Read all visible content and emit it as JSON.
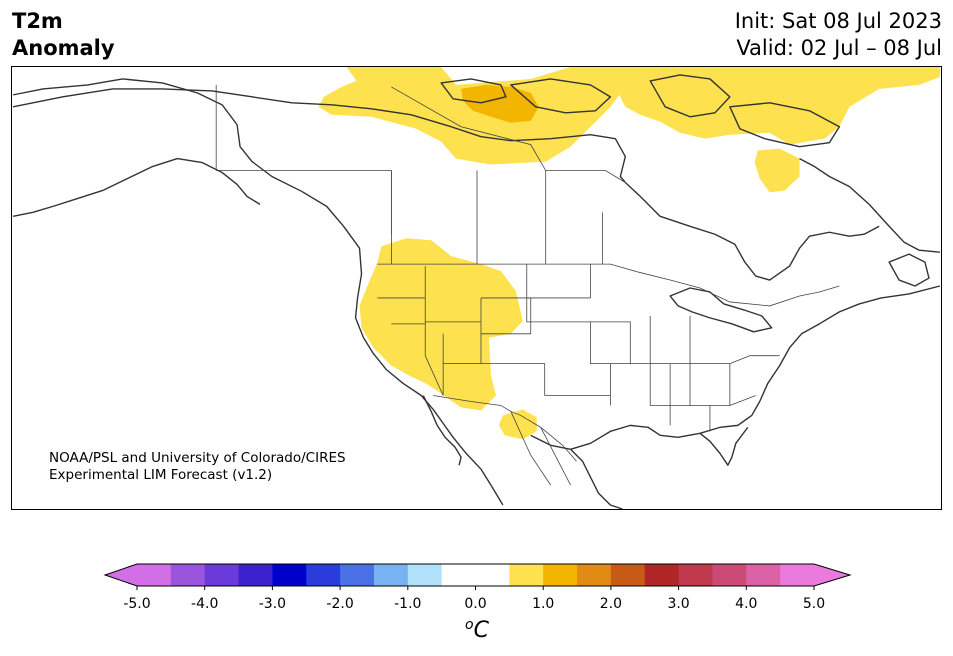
{
  "header": {
    "title_line1": "T2m",
    "title_line2": "Anomaly",
    "init": "Init: Sat 08 Jul 2023",
    "valid": "Valid: 02 Jul – 08 Jul"
  },
  "credit": {
    "line1": "NOAA/PSL and University of Colorado/CIRES",
    "line2": "Experimental LIM Forecast (v1.2)"
  },
  "colorbar": {
    "unit_label": "oC",
    "tick_labels": [
      "-5.0",
      "-4.0",
      "-3.0",
      "-2.0",
      "-1.0",
      "0.0",
      "1.0",
      "2.0",
      "3.0",
      "4.0",
      "5.0"
    ],
    "colors": [
      "#d26fe6",
      "#9a55dd",
      "#6a3adb",
      "#3a22cf",
      "#0000cd",
      "#2a3ddc",
      "#4a72e6",
      "#79b2f1",
      "#b0e0fa",
      "#ffffff",
      "#ffffff",
      "#fde14e",
      "#f2b500",
      "#e18a14",
      "#c75a15",
      "#b02626",
      "#c0384b",
      "#cc4b76",
      "#db62a6",
      "#ea7adb"
    ],
    "under_color": "#d26fe6",
    "over_color": "#ea7adb"
  },
  "map": {
    "anomaly_colors": {
      "light": "#fde14e",
      "medium": "#f2b500"
    }
  }
}
